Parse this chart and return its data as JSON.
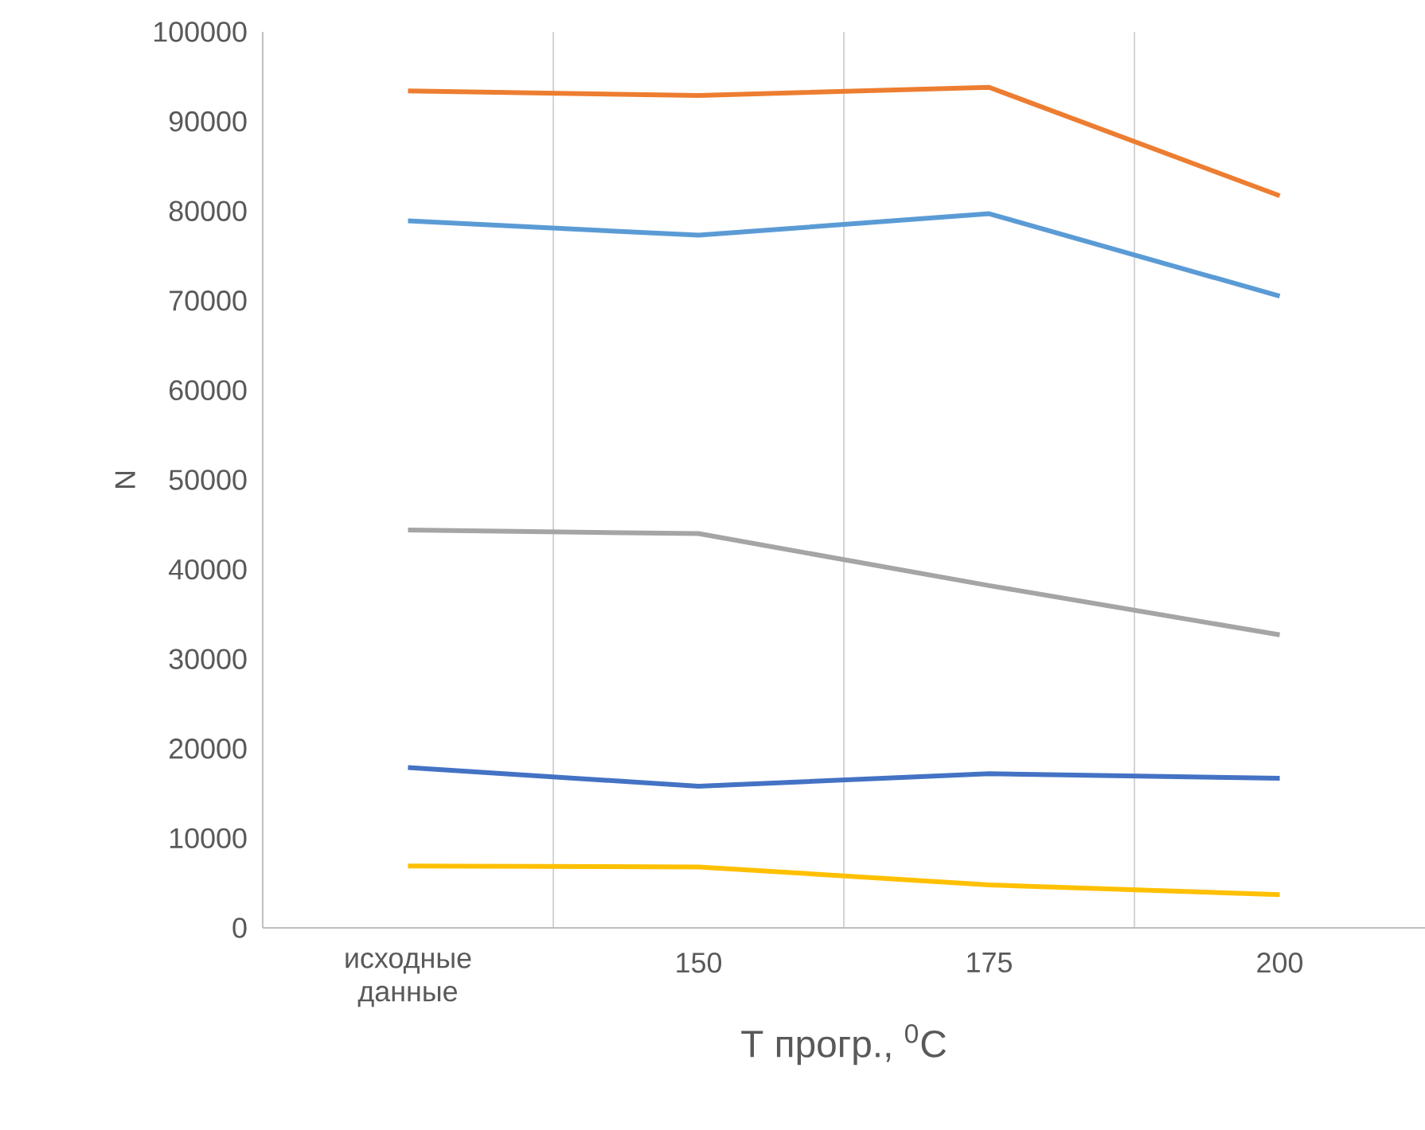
{
  "chart_data": {
    "type": "line",
    "xlabel": "T прогр., $^{0}$C",
    "ylabel": "N",
    "categories": [
      "исходные данные",
      "150",
      "175",
      "200"
    ],
    "series": [
      {
        "color": "#ed7d31",
        "values": [
          93400,
          92900,
          93800,
          81700
        ]
      },
      {
        "color": "#5b9bd5",
        "values": [
          78900,
          77300,
          79700,
          70500
        ]
      },
      {
        "color": "#a5a5a5",
        "values": [
          44400,
          44000,
          38200,
          32700
        ]
      },
      {
        "color": "#4472c4",
        "values": [
          17900,
          15800,
          17200,
          16700
        ]
      },
      {
        "color": "#ffc000",
        "values": [
          6900,
          6800,
          4800,
          3700
        ]
      }
    ],
    "ylim": [
      0,
      100000
    ],
    "yticks": [
      0,
      10000,
      20000,
      30000,
      40000,
      50000,
      60000,
      70000,
      80000,
      90000,
      100000
    ],
    "grid": "x",
    "marker": "none",
    "line_style": "solid"
  }
}
